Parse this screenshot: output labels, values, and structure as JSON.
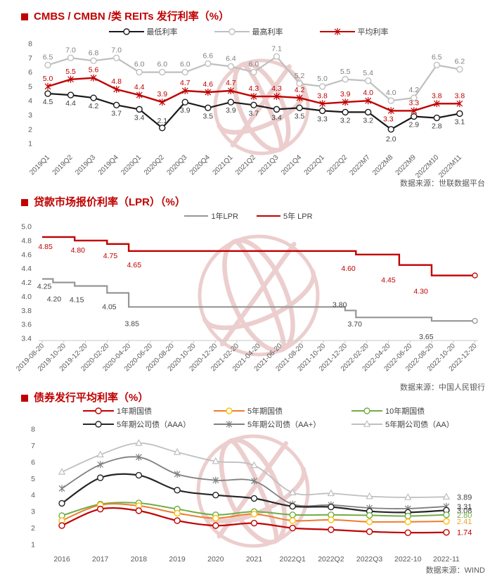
{
  "page": {
    "background": "#ffffff",
    "accent_red": "#c00000"
  },
  "chart_data": [
    {
      "id": "cmbs-issuance-rate",
      "type": "line",
      "title": "CMBS / CMBN /类 REITs 发行利率（%）",
      "source": "数据来源：世联数据平台",
      "ylim": [
        1,
        8
      ],
      "yticks": [
        8,
        7,
        6,
        5,
        4,
        3,
        2,
        1
      ],
      "categories": [
        "2019Q1",
        "2019Q2",
        "2019Q3",
        "2019Q4",
        "2020Q1",
        "2020Q2",
        "2020Q3",
        "2020Q4",
        "2021Q1",
        "2021Q2",
        "2021Q3",
        "2021Q4",
        "2022Q1",
        "2022Q2",
        "2022M7",
        "2022M8",
        "2022M9",
        "2022M10",
        "2022M11"
      ],
      "series": [
        {
          "name": "最低利率",
          "color": "#1a1a1a",
          "marker": "circle",
          "values": [
            4.5,
            4.4,
            4.2,
            3.7,
            3.4,
            2.1,
            3.9,
            3.5,
            3.9,
            3.7,
            3.4,
            3.5,
            3.3,
            3.2,
            3.2,
            2.0,
            2.9,
            2.8,
            3.1
          ]
        },
        {
          "name": "最高利率",
          "color": "#bfbfbf",
          "marker": "circle",
          "values": [
            6.5,
            7.0,
            6.8,
            7.0,
            6.0,
            6.0,
            6.0,
            6.6,
            6.4,
            6.0,
            7.1,
            5.2,
            5.0,
            5.5,
            5.4,
            4.0,
            4.2,
            6.5,
            6.2
          ]
        },
        {
          "name": "平均利率",
          "color": "#c00000",
          "marker": "star",
          "values": [
            5.0,
            5.5,
            5.6,
            4.8,
            4.4,
            3.9,
            4.7,
            4.6,
            4.7,
            4.3,
            4.3,
            4.2,
            3.8,
            3.9,
            4.0,
            3.3,
            3.3,
            3.8,
            3.8
          ]
        }
      ]
    },
    {
      "id": "lpr",
      "type": "step-line",
      "title": "贷款市场报价利率（LPR）（%）",
      "source": "数据来源：中国人民银行",
      "ylim": [
        3.4,
        5.0
      ],
      "yticks": [
        5.0,
        4.8,
        4.6,
        4.4,
        4.2,
        4.0,
        3.8,
        3.6,
        3.4
      ],
      "categories": [
        "2019-08-20",
        "2019-10-20",
        "2019-12-20",
        "2020-02-20",
        "2020-04-20",
        "2020-06-20",
        "2020-08-20",
        "2020-10-20",
        "2020-12-20",
        "2021-02-20",
        "2021-04-20",
        "2021-06-20",
        "2021-08-20",
        "2021-10-20",
        "2021-12-20",
        "2022-02-20",
        "2022-04-20",
        "2022-06-20",
        "2022-08-20",
        "2022-10-20",
        "2022-12-20"
      ],
      "series": [
        {
          "name": "1年LPR",
          "color": "#969696",
          "steps": [
            [
              "2019-08",
              4.25
            ],
            [
              "2019-09",
              4.2
            ],
            [
              "2019-11",
              4.15
            ],
            [
              "2020-02",
              4.05
            ],
            [
              "2020-04",
              3.85
            ],
            [
              "2021-12",
              3.8
            ],
            [
              "2022-01",
              3.7
            ],
            [
              "2022-08",
              3.65
            ]
          ]
        },
        {
          "name": "5年 LPR",
          "color": "#c00000",
          "steps": [
            [
              "2019-08",
              4.85
            ],
            [
              "2019-11",
              4.8
            ],
            [
              "2020-02",
              4.75
            ],
            [
              "2020-04",
              4.65
            ],
            [
              "2022-01",
              4.6
            ],
            [
              "2022-05",
              4.45
            ],
            [
              "2022-08",
              4.3
            ]
          ]
        }
      ]
    },
    {
      "id": "bond-issuance-avg-rate",
      "type": "line",
      "title": "债券发行平均利率（%）",
      "source": "数据来源：WIND",
      "ylim": [
        1,
        8
      ],
      "yticks": [
        8,
        7,
        6,
        5,
        4,
        3,
        2,
        1
      ],
      "categories": [
        "2016",
        "2017",
        "2018",
        "2019",
        "2020",
        "2021",
        "2022Q1",
        "2022Q2",
        "2022Q3",
        "2022-10",
        "2022-11"
      ],
      "series": [
        {
          "name": "1年期国债",
          "color": "#c00000",
          "marker": "circle",
          "end_label": "1.74",
          "end_label_color": "#c00000",
          "values": [
            2.15,
            3.15,
            3.05,
            2.45,
            2.15,
            2.3,
            2.0,
            1.9,
            1.78,
            1.72,
            1.74
          ]
        },
        {
          "name": "5年期国债",
          "color": "#ed7d31",
          "marker": "circle",
          "marker_color": "#ffc000",
          "end_label": "2.41",
          "end_label_color": "#e8a23a",
          "values": [
            2.45,
            3.4,
            3.35,
            2.9,
            2.6,
            2.85,
            2.45,
            2.5,
            2.38,
            2.38,
            2.41
          ]
        },
        {
          "name": "10年期国债",
          "color": "#70ad47",
          "marker": "circle",
          "end_label": "2.80",
          "end_label_color": "#70ad47",
          "values": [
            2.75,
            3.45,
            3.52,
            3.15,
            2.8,
            3.0,
            2.8,
            2.8,
            2.77,
            2.73,
            2.8
          ]
        },
        {
          "name": "5年期公司债（AAA）",
          "color": "#262626",
          "marker": "circle",
          "end_label": "3.08",
          "end_label_color": "#404040",
          "values": [
            3.5,
            5.05,
            5.2,
            4.3,
            4.0,
            3.8,
            3.32,
            3.28,
            3.02,
            2.95,
            3.08
          ]
        },
        {
          "name": "5年期公司债（AA+）",
          "color": "#7f7f7f",
          "marker": "star",
          "end_label": "3.31",
          "end_label_color": "#404040",
          "values": [
            4.4,
            5.85,
            6.3,
            5.27,
            4.9,
            4.85,
            3.45,
            3.4,
            3.22,
            3.18,
            3.31
          ]
        },
        {
          "name": "5年期公司债（AA）",
          "color": "#bfbfbf",
          "marker": "triangle",
          "end_label": "3.89",
          "end_label_color": "#404040",
          "values": [
            5.4,
            6.45,
            7.15,
            6.6,
            6.05,
            5.8,
            4.15,
            4.1,
            3.92,
            3.86,
            3.89
          ]
        }
      ]
    }
  ]
}
